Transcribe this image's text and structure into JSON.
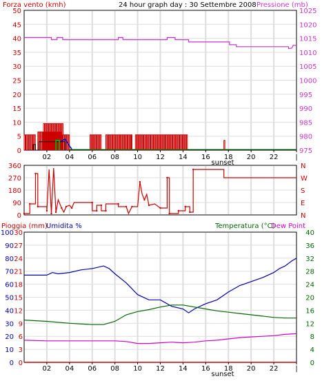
{
  "header": {
    "wind_label": "Forza vento (kmh)",
    "title": "24 hour graph day : 30 Settembre 2008",
    "pressure_label": "Pressione (mb)"
  },
  "lower_header": {
    "rain_label": "Pioggia (mm)",
    "humidity_label": "Umidita %",
    "temp_label": "Temperatura (°C)",
    "dewpoint_label": "Dew Point"
  },
  "x_axis": {
    "ticks": [
      "02",
      "04",
      "06",
      "08",
      "10",
      "12",
      "14",
      "16",
      "18",
      "20",
      "22"
    ],
    "sunset_label": "sunset"
  },
  "colors": {
    "wind": "#cc0000",
    "gust": "#cc0000",
    "wind_avg": "#000000",
    "pressure": "#cc33cc",
    "wind_dir": "#cc0000",
    "humidity": "#0000aa",
    "temperature": "#006600",
    "dewpoint": "#cc00cc",
    "rain": "#cc0000",
    "axis_left": "#cc0000",
    "axis_right_pressure": "#cc33cc",
    "axis_right_temp": "#006600",
    "axis_dir": "#cc0000",
    "axis_hum": "#0000aa",
    "grid": "#dddddd"
  },
  "chart_data": [
    {
      "type": "line",
      "name": "wind_pressure",
      "title": "24 hour graph day : 30 Settembre 2008",
      "x_unit": "hour",
      "x_range": [
        0,
        24
      ],
      "ylabel_left": "Forza vento (kmh)",
      "ylim_left": [
        0,
        50
      ],
      "yticks_left": [
        0,
        5,
        10,
        15,
        20,
        25,
        30,
        35,
        40,
        45,
        50
      ],
      "ylabel_right": "Pressione (mb)",
      "ylim_right": [
        975,
        1025
      ],
      "yticks_right": [
        975,
        980,
        985,
        990,
        995,
        1000,
        1005,
        1010,
        1015,
        1020,
        1025
      ],
      "series": [
        {
          "name": "Pressione (mb)",
          "axis": "right",
          "points": [
            [
              0,
              1015.3
            ],
            [
              2.4,
              1015.3
            ],
            [
              2.4,
              1014.5
            ],
            [
              2.9,
              1014.5
            ],
            [
              2.9,
              1015.3
            ],
            [
              3.4,
              1015.3
            ],
            [
              3.4,
              1014.5
            ],
            [
              8.3,
              1014.5
            ],
            [
              8.3,
              1015.3
            ],
            [
              8.7,
              1015.3
            ],
            [
              8.7,
              1014.5
            ],
            [
              12.6,
              1014.5
            ],
            [
              12.6,
              1015.3
            ],
            [
              13.3,
              1015.3
            ],
            [
              13.3,
              1014.5
            ],
            [
              14.5,
              1014.5
            ],
            [
              14.5,
              1013.7
            ],
            [
              18.1,
              1013.7
            ],
            [
              18.1,
              1012.7
            ],
            [
              18.7,
              1012.7
            ],
            [
              18.7,
              1012.0
            ],
            [
              23.3,
              1012.0
            ],
            [
              23.3,
              1011.3
            ],
            [
              23.6,
              1011.5
            ],
            [
              23.7,
              1012.5
            ],
            [
              24,
              1012.5
            ]
          ]
        },
        {
          "name": "wind",
          "axis": "left",
          "segments": [
            {
              "start": 0.0,
              "end": 1.0,
              "value": 5.5
            },
            {
              "start": 1.2,
              "end": 3.3,
              "value": 6.5
            },
            {
              "start": 1.7,
              "end": 3.5,
              "value": 9.5
            },
            {
              "start": 3.3,
              "end": 4.0,
              "value": 5.5
            },
            {
              "start": 5.8,
              "end": 6.8,
              "value": 5.5
            },
            {
              "start": 7.2,
              "end": 9.5,
              "value": 5.5
            },
            {
              "start": 9.8,
              "end": 14.4,
              "value": 5.5
            },
            {
              "start": 17.6,
              "end": 17.7,
              "value": 3.5
            }
          ],
          "baseline": 0
        },
        {
          "name": "wind_avg",
          "axis": "left",
          "points": [
            [
              0.8,
              0
            ],
            [
              0.8,
              2
            ],
            [
              1.0,
              2
            ],
            [
              1.0,
              0
            ],
            [
              1.3,
              0
            ],
            [
              1.3,
              3
            ],
            [
              3.6,
              3
            ],
            [
              3.6,
              0
            ]
          ]
        },
        {
          "name": "gust_green",
          "axis": "left",
          "points": [
            [
              2.8,
              0
            ],
            [
              2.8,
              3.5
            ],
            [
              3.1,
              3.5
            ],
            [
              3.1,
              0
            ]
          ]
        },
        {
          "name": "wind_blue",
          "axis": "left",
          "points": [
            [
              3.2,
              3.0
            ],
            [
              3.6,
              4.0
            ],
            [
              4.0,
              1.5
            ],
            [
              4.2,
              0.4
            ]
          ]
        }
      ]
    },
    {
      "type": "line",
      "name": "wind_direction",
      "x_unit": "hour",
      "x_range": [
        0,
        24
      ],
      "ylim_left": [
        0,
        360
      ],
      "yticks_left": [
        0,
        90,
        180,
        270,
        360
      ],
      "right_labels": [
        "N",
        "W",
        "S",
        "E",
        "N"
      ],
      "series": [
        {
          "name": "direction",
          "points": [
            [
              0,
              10
            ],
            [
              0.5,
              10
            ],
            [
              0.5,
              80
            ],
            [
              1.0,
              80
            ],
            [
              1.0,
              300
            ],
            [
              1.2,
              300
            ],
            [
              1.2,
              60
            ],
            [
              2.0,
              60
            ],
            [
              2.0,
              30
            ],
            [
              2.2,
              330
            ],
            [
              2.4,
              10
            ],
            [
              2.6,
              340
            ],
            [
              2.8,
              20
            ],
            [
              3.0,
              110
            ],
            [
              3.3,
              50
            ],
            [
              3.5,
              20
            ],
            [
              3.7,
              60
            ],
            [
              4.0,
              70
            ],
            [
              4.2,
              50
            ],
            [
              4.4,
              90
            ],
            [
              6.0,
              90
            ],
            [
              6.0,
              30
            ],
            [
              6.4,
              30
            ],
            [
              6.4,
              70
            ],
            [
              6.8,
              70
            ],
            [
              6.8,
              30
            ],
            [
              7.2,
              30
            ],
            [
              7.2,
              80
            ],
            [
              8.3,
              80
            ],
            [
              8.3,
              60
            ],
            [
              9.0,
              60
            ],
            [
              9.2,
              10
            ],
            [
              9.5,
              60
            ],
            [
              10.0,
              60
            ],
            [
              10.2,
              240
            ],
            [
              10.4,
              150
            ],
            [
              10.6,
              110
            ],
            [
              10.8,
              150
            ],
            [
              11.0,
              70
            ],
            [
              11.5,
              80
            ],
            [
              12.0,
              50
            ],
            [
              12.6,
              50
            ],
            [
              12.6,
              270
            ],
            [
              12.8,
              270
            ],
            [
              12.8,
              10
            ],
            [
              13.6,
              10
            ],
            [
              13.6,
              30
            ],
            [
              14.2,
              30
            ],
            [
              14.2,
              60
            ],
            [
              14.6,
              60
            ],
            [
              14.6,
              20
            ],
            [
              14.9,
              20
            ],
            [
              14.9,
              330
            ],
            [
              17.6,
              330
            ],
            [
              17.6,
              270
            ],
            [
              24,
              270
            ]
          ]
        }
      ]
    },
    {
      "type": "line",
      "name": "humidity_temperature",
      "x_unit": "hour",
      "x_range": [
        0,
        24
      ],
      "ylabel_left": "Pioggia (mm)",
      "ylabel_left2": "Umidita %",
      "ylim_rain": [
        0,
        30
      ],
      "ylim_humidity": [
        0,
        100
      ],
      "yticks_rain": [
        0,
        3,
        6,
        9,
        12,
        15,
        18,
        21,
        24,
        27,
        30
      ],
      "yticks_humidity": [
        0,
        10,
        20,
        30,
        40,
        50,
        60,
        70,
        80,
        90,
        100
      ],
      "ylabel_right": "Temperatura (°C)",
      "ylabel_right2": "Dew Point",
      "ylim_right": [
        0,
        40
      ],
      "yticks_right": [
        0,
        4,
        8,
        12,
        16,
        20,
        24,
        28,
        32,
        36,
        40
      ],
      "series": [
        {
          "name": "Umidita %",
          "axis": "humidity",
          "points": [
            [
              0,
              67
            ],
            [
              2,
              67
            ],
            [
              2.5,
              69
            ],
            [
              3,
              68
            ],
            [
              4,
              69
            ],
            [
              5,
              71
            ],
            [
              6,
              72
            ],
            [
              7,
              74
            ],
            [
              7.5,
              72
            ],
            [
              8,
              68
            ],
            [
              9,
              61
            ],
            [
              10,
              52
            ],
            [
              11,
              48
            ],
            [
              12,
              48
            ],
            [
              13,
              43
            ],
            [
              14,
              41
            ],
            [
              14.5,
              38
            ],
            [
              15,
              41
            ],
            [
              16,
              45
            ],
            [
              17,
              48
            ],
            [
              18,
              54
            ],
            [
              19,
              59
            ],
            [
              20,
              62
            ],
            [
              21,
              65
            ],
            [
              22,
              69
            ],
            [
              22.5,
              72
            ],
            [
              23,
              74
            ],
            [
              23.6,
              78
            ],
            [
              24,
              80
            ]
          ]
        },
        {
          "name": "Temperatura (°C)",
          "axis": "right",
          "points": [
            [
              0,
              13.0
            ],
            [
              2,
              12.6
            ],
            [
              4,
              12.0
            ],
            [
              6,
              11.6
            ],
            [
              7,
              11.6
            ],
            [
              8,
              12.6
            ],
            [
              9,
              14.6
            ],
            [
              10,
              15.6
            ],
            [
              11,
              16.2
            ],
            [
              12,
              17.0
            ],
            [
              13,
              17.6
            ],
            [
              14,
              17.6
            ],
            [
              15,
              17.0
            ],
            [
              16,
              16.4
            ],
            [
              17,
              15.8
            ],
            [
              18,
              15.4
            ],
            [
              19,
              15.0
            ],
            [
              20,
              14.6
            ],
            [
              21,
              14.2
            ],
            [
              22,
              13.8
            ],
            [
              23,
              13.6
            ],
            [
              24,
              13.6
            ]
          ]
        },
        {
          "name": "Dew Point",
          "axis": "right",
          "points": [
            [
              0,
              6.8
            ],
            [
              2,
              6.6
            ],
            [
              4,
              6.6
            ],
            [
              6,
              6.6
            ],
            [
              8,
              6.6
            ],
            [
              9,
              6.4
            ],
            [
              10,
              5.8
            ],
            [
              11,
              5.8
            ],
            [
              12,
              6.0
            ],
            [
              13,
              6.2
            ],
            [
              14,
              6.0
            ],
            [
              15,
              6.2
            ],
            [
              16,
              6.6
            ],
            [
              17,
              6.8
            ],
            [
              18,
              7.2
            ],
            [
              19,
              7.6
            ],
            [
              20,
              7.8
            ],
            [
              21,
              8.0
            ],
            [
              22,
              8.2
            ],
            [
              23,
              8.6
            ],
            [
              24,
              8.8
            ]
          ]
        },
        {
          "name": "Pioggia (mm)",
          "axis": "rain",
          "points": [
            [
              0,
              0
            ],
            [
              24,
              0
            ]
          ]
        }
      ]
    }
  ]
}
